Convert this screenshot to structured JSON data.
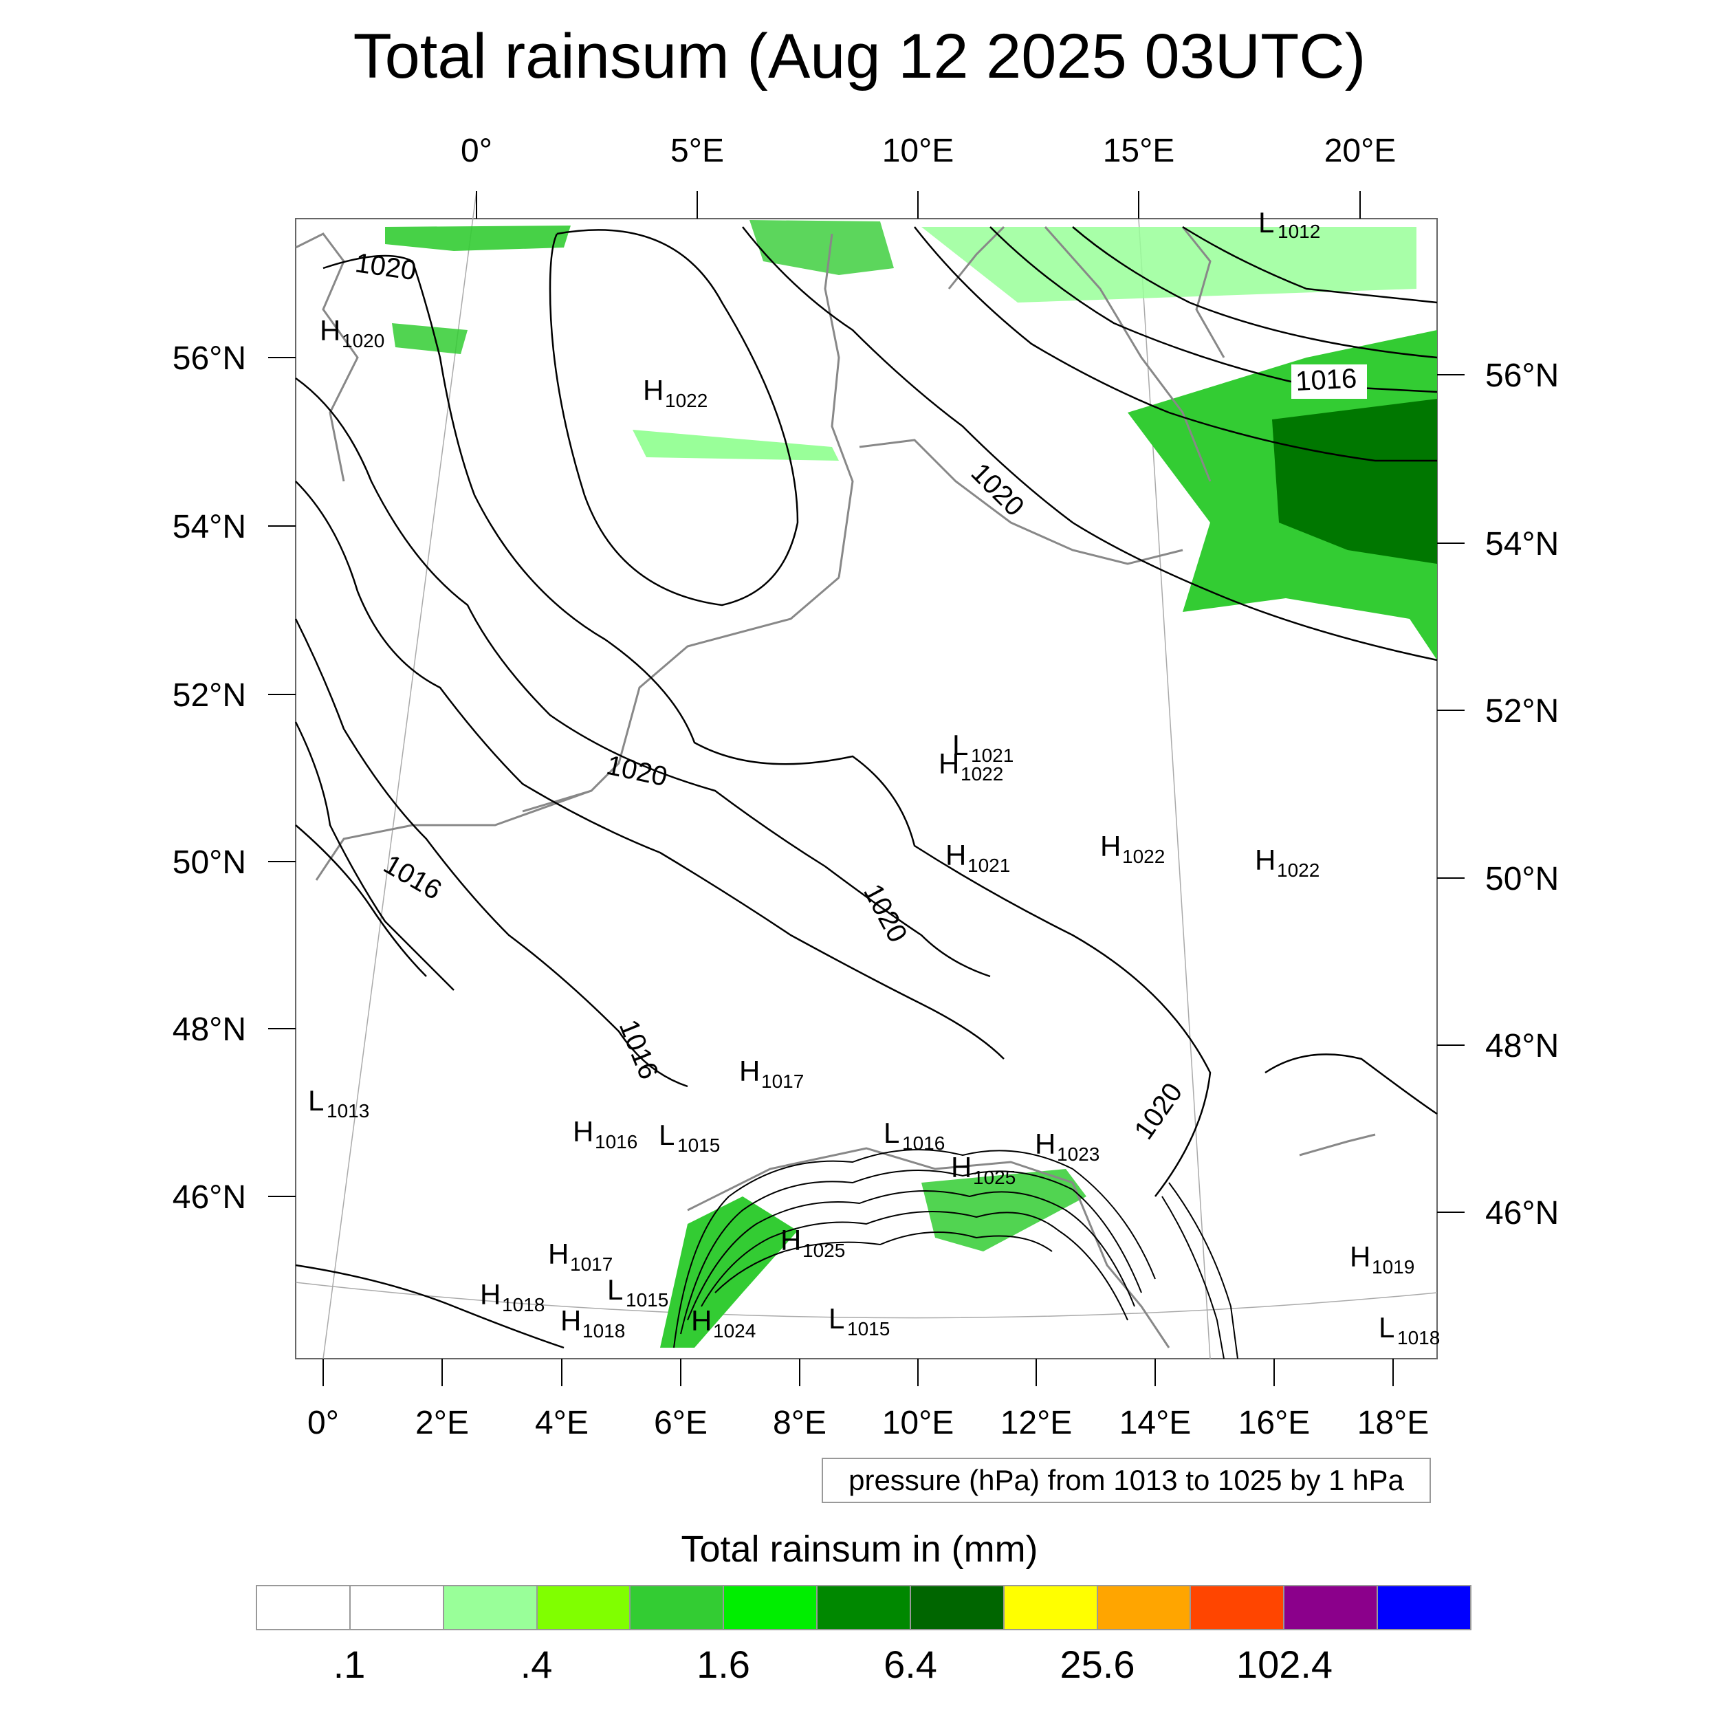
{
  "title": "Total rainsum (Aug 12 2025 03UTC)",
  "map": {
    "projection": "rotated-pole",
    "lon_ticks_top": [
      "0°",
      "5°E",
      "10°E",
      "15°E",
      "20°E"
    ],
    "lon_ticks_bottom": [
      "0°",
      "2°E",
      "4°E",
      "6°E",
      "8°E",
      "10°E",
      "12°E",
      "14°E",
      "16°E",
      "18°E"
    ],
    "lat_ticks_left": [
      "56°N",
      "54°N",
      "52°N",
      "50°N",
      "48°N",
      "46°N"
    ],
    "lat_ticks_right": [
      "56°N",
      "54°N",
      "52°N",
      "50°N",
      "48°N",
      "46°N"
    ],
    "contour_labels": [
      "1020",
      "1016",
      "1020",
      "1020",
      "1020",
      "1016",
      "1016",
      "1020"
    ],
    "pressure_centers": [
      {
        "type": "L",
        "value": "1012"
      },
      {
        "type": "H",
        "value": "1020"
      },
      {
        "type": "H",
        "value": "1022"
      },
      {
        "type": "L",
        "value": "1021"
      },
      {
        "type": "H",
        "value": "1022"
      },
      {
        "type": "H",
        "value": "1021"
      },
      {
        "type": "H",
        "value": "1022"
      },
      {
        "type": "H",
        "value": "1022"
      },
      {
        "type": "H",
        "value": "1017"
      },
      {
        "type": "L",
        "value": "1013"
      },
      {
        "type": "H",
        "value": "1016"
      },
      {
        "type": "L",
        "value": "1015"
      },
      {
        "type": "L",
        "value": "1016"
      },
      {
        "type": "H",
        "value": "1025"
      },
      {
        "type": "H",
        "value": "1023"
      },
      {
        "type": "H",
        "value": "1025"
      },
      {
        "type": "H",
        "value": "1017"
      },
      {
        "type": "H",
        "value": "1018"
      },
      {
        "type": "L",
        "value": "1015"
      },
      {
        "type": "H",
        "value": "1018"
      },
      {
        "type": "H",
        "value": "1024"
      },
      {
        "type": "L",
        "value": "1015"
      },
      {
        "type": "H",
        "value": "1019"
      },
      {
        "type": "L",
        "value": "1018"
      }
    ],
    "colors": {
      "coastline": "#888888",
      "contour": "#000000",
      "rain_light": "#99ff99",
      "rain_mid": "#33cc33",
      "rain_heavy": "#007700"
    }
  },
  "contour_info": "pressure (hPa) from 1013 to 1025 by 1 hPa",
  "legend": {
    "title": "Total rainsum in (mm)",
    "colors": [
      "#ffffff",
      "#ffffff",
      "#99ff99",
      "#80ff00",
      "#33cc33",
      "#00ee00",
      "#008800",
      "#006600",
      "#ffff00",
      "#ffa500",
      "#ff4500",
      "#8b008b",
      "#0000ff"
    ],
    "labels": [
      ".1",
      ".4",
      "1.6",
      "6.4",
      "25.6",
      "102.4"
    ]
  }
}
